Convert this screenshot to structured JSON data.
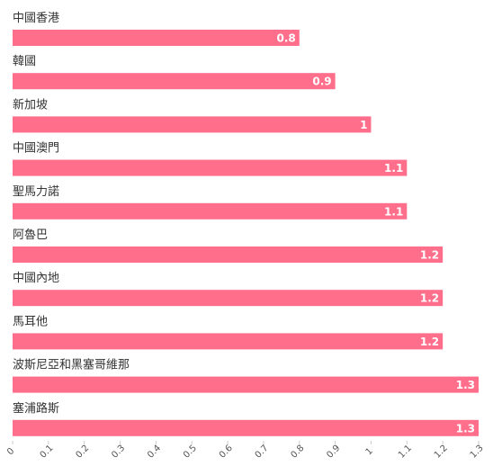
{
  "chart_data": {
    "type": "bar",
    "orientation": "horizontal",
    "categories": [
      "中國香港",
      "韓國",
      "新加坡",
      "中國澳門",
      "聖馬力諾",
      "阿魯巴",
      "中國內地",
      "馬耳他",
      "波斯尼亞和黑塞哥維那",
      "塞浦路斯"
    ],
    "values": [
      0.8,
      0.9,
      1,
      1.1,
      1.1,
      1.2,
      1.2,
      1.2,
      1.3,
      1.3
    ],
    "value_labels": [
      "0.8",
      "0.9",
      "1",
      "1.1",
      "1.1",
      "1.2",
      "1.2",
      "1.2",
      "1.3",
      "1.3"
    ],
    "xlim": [
      0,
      1.3
    ],
    "xticks": [
      "0",
      "0.1",
      "0.2",
      "0.3",
      "0.4",
      "0.5",
      "0.6",
      "0.7",
      "0.8",
      "0.9",
      "1",
      "1.1",
      "1.2",
      "1.3"
    ],
    "bar_color": "#ff6e8a",
    "grid": false,
    "legend": false
  }
}
